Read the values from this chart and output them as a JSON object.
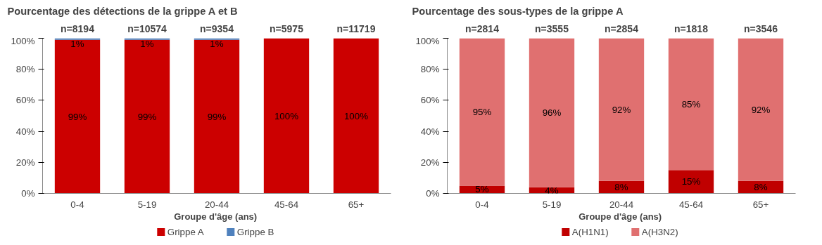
{
  "chart_data": [
    {
      "type": "bar",
      "stacked": true,
      "title": "Pourcentage  des détections  de la grippe  A et B",
      "xlabel": "Groupe d'âge  (ans)",
      "categories": [
        "0-4",
        "5-19",
        "20-44",
        "45-64",
        "65+"
      ],
      "ylim": [
        0,
        100
      ],
      "yticks": [
        {
          "value": 0,
          "label": "0%"
        },
        {
          "value": 20,
          "label": "20%"
        },
        {
          "value": 40,
          "label": "40%"
        },
        {
          "value": 60,
          "label": "60%"
        },
        {
          "value": 80,
          "label": "80%"
        },
        {
          "value": 100,
          "label": "100%"
        }
      ],
      "grid": false,
      "legend": "bottom",
      "annotations": [
        {
          "text": "n=8194",
          "x": "0-4",
          "y": 100
        },
        {
          "text": "n=10574",
          "x": "5-19",
          "y": 100
        },
        {
          "text": "n=9354",
          "x": "20-44",
          "y": 100
        },
        {
          "text": "n=5975",
          "x": "45-64",
          "y": 100
        },
        {
          "text": "n=11719",
          "x": "65+",
          "y": 100
        }
      ],
      "series": [
        {
          "name": "Grippe A",
          "color": "#cc0000",
          "values": [
            99,
            99,
            99,
            100,
            100
          ],
          "value_labels": [
            "99%",
            "99%",
            "99%",
            "100%",
            "100%"
          ]
        },
        {
          "name": "Grippe B",
          "color": "#4f81bd",
          "values": [
            1,
            1,
            1,
            0,
            0
          ],
          "value_labels": [
            "1%",
            "1%",
            "1%",
            null,
            null
          ]
        }
      ]
    },
    {
      "type": "bar",
      "stacked": true,
      "title": "Pourcentage  des sous-types  de la grippe  A",
      "xlabel": "Groupe d'âge  (ans)",
      "categories": [
        "0-4",
        "5-19",
        "20-44",
        "45-64",
        "65+"
      ],
      "ylim": [
        0,
        100
      ],
      "yticks": [
        {
          "value": 0,
          "label": "0%"
        },
        {
          "value": 20,
          "label": "20%"
        },
        {
          "value": 40,
          "label": "40%"
        },
        {
          "value": 60,
          "label": "60%"
        },
        {
          "value": 80,
          "label": "80%"
        },
        {
          "value": 100,
          "label": "100%"
        }
      ],
      "grid": false,
      "legend": "bottom",
      "annotations": [
        {
          "text": "n=2814",
          "x": "0-4",
          "y": 100
        },
        {
          "text": "n=3555",
          "x": "5-19",
          "y": 100
        },
        {
          "text": "n=2854",
          "x": "20-44",
          "y": 100
        },
        {
          "text": "n=1818",
          "x": "45-64",
          "y": 100
        },
        {
          "text": "n=3546",
          "x": "65+",
          "y": 100
        }
      ],
      "series": [
        {
          "name": "A(H1N1)",
          "color": "#c00000",
          "values": [
            5,
            4,
            8,
            15,
            8
          ],
          "value_labels": [
            "5%",
            "4%",
            "8%",
            "15%",
            "8%"
          ]
        },
        {
          "name": "A(H3N2)",
          "color": "#e07070",
          "values": [
            95,
            96,
            92,
            85,
            92
          ],
          "value_labels": [
            "95%",
            "96%",
            "92%",
            "85%",
            "92%"
          ]
        }
      ]
    }
  ]
}
